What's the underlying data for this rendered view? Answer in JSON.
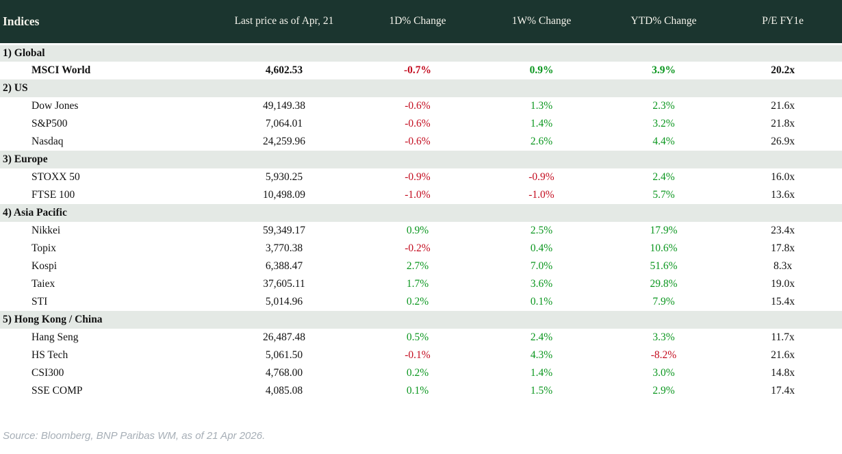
{
  "table": {
    "columns": [
      "Indices",
      "Last price as of Apr, 21",
      "1D% Change",
      "1W% Change",
      "YTD% Change",
      "P/E FY1e"
    ],
    "sections": [
      {
        "label": "1) Global",
        "rows": [
          {
            "name": "MSCI World",
            "price": "4,602.53",
            "d1": "-0.7%",
            "w1": "0.9%",
            "ytd": "3.9%",
            "pe": "20.2x",
            "bold": true
          }
        ]
      },
      {
        "label": "2) US",
        "rows": [
          {
            "name": "Dow Jones",
            "price": "49,149.38",
            "d1": "-0.6%",
            "w1": "1.3%",
            "ytd": "2.3%",
            "pe": "21.6x"
          },
          {
            "name": "S&P500",
            "price": "7,064.01",
            "d1": "-0.6%",
            "w1": "1.4%",
            "ytd": "3.2%",
            "pe": "21.8x"
          },
          {
            "name": "Nasdaq",
            "price": "24,259.96",
            "d1": "-0.6%",
            "w1": "2.6%",
            "ytd": "4.4%",
            "pe": "26.9x"
          }
        ]
      },
      {
        "label": "3) Europe",
        "rows": [
          {
            "name": "STOXX 50",
            "price": "5,930.25",
            "d1": "-0.9%",
            "w1": "-0.9%",
            "ytd": "2.4%",
            "pe": "16.0x"
          },
          {
            "name": "FTSE 100",
            "price": "10,498.09",
            "d1": "-1.0%",
            "w1": "-1.0%",
            "ytd": "5.7%",
            "pe": "13.6x"
          }
        ]
      },
      {
        "label": "4) Asia Pacific",
        "rows": [
          {
            "name": "Nikkei",
            "price": "59,349.17",
            "d1": "0.9%",
            "w1": "2.5%",
            "ytd": "17.9%",
            "pe": "23.4x"
          },
          {
            "name": "Topix",
            "price": "3,770.38",
            "d1": "-0.2%",
            "w1": "0.4%",
            "ytd": "10.6%",
            "pe": "17.8x"
          },
          {
            "name": "Kospi",
            "price": "6,388.47",
            "d1": "2.7%",
            "w1": "7.0%",
            "ytd": "51.6%",
            "pe": "8.3x"
          },
          {
            "name": "Taiex",
            "price": "37,605.11",
            "d1": "1.7%",
            "w1": "3.6%",
            "ytd": "29.8%",
            "pe": "19.0x"
          },
          {
            "name": "STI",
            "price": "5,014.96",
            "d1": "0.2%",
            "w1": "0.1%",
            "ytd": "7.9%",
            "pe": "15.4x"
          }
        ]
      },
      {
        "label": "5) Hong Kong / China",
        "rows": [
          {
            "name": "Hang Seng",
            "price": "26,487.48",
            "d1": "0.5%",
            "w1": "2.4%",
            "ytd": "3.3%",
            "pe": "11.7x"
          },
          {
            "name": "HS Tech",
            "price": "5,061.50",
            "d1": "-0.1%",
            "w1": "4.3%",
            "ytd": "-8.2%",
            "pe": "21.6x"
          },
          {
            "name": "CSI300",
            "price": "4,768.00",
            "d1": "0.2%",
            "w1": "1.4%",
            "ytd": "3.0%",
            "pe": "14.8x"
          },
          {
            "name": "SSE COMP",
            "price": "4,085.08",
            "d1": "0.1%",
            "w1": "1.5%",
            "ytd": "2.9%",
            "pe": "17.4x"
          }
        ]
      }
    ]
  },
  "footer": {
    "source": "Source: Bloomberg, BNP Paribas WM, as of 21 Apr 2026."
  },
  "colors": {
    "header_bg": "#1b352f",
    "header_fg": "#f5f4ec",
    "section_bg": "#e4e9e5",
    "positive": "#0a961e",
    "negative": "#c30b1e",
    "source_fg": "#a6aeb6"
  }
}
